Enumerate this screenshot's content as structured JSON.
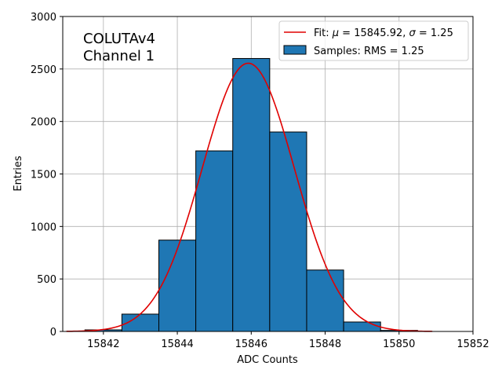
{
  "chart_data": {
    "type": "bar",
    "xlabel": "ADC Counts",
    "ylabel": "Entries",
    "xlim": [
      15840.9,
      15852
    ],
    "ylim": [
      0,
      3000
    ],
    "grid": true,
    "legend_placement": "top-right",
    "annotation": [
      "COLUTAv4",
      "Channel 1"
    ],
    "x_ticks": [
      15842,
      15844,
      15846,
      15848,
      15850,
      15852
    ],
    "y_ticks": [
      0,
      500,
      1000,
      1500,
      2000,
      2500,
      3000
    ],
    "bins": [
      {
        "left": 15841.5,
        "right": 15842.5,
        "value": 15
      },
      {
        "left": 15842.5,
        "right": 15843.5,
        "value": 165
      },
      {
        "left": 15843.5,
        "right": 15844.5,
        "value": 870
      },
      {
        "left": 15844.5,
        "right": 15845.5,
        "value": 1720
      },
      {
        "left": 15845.5,
        "right": 15846.5,
        "value": 2600
      },
      {
        "left": 15846.5,
        "right": 15847.5,
        "value": 1900
      },
      {
        "left": 15847.5,
        "right": 15848.5,
        "value": 585
      },
      {
        "left": 15848.5,
        "right": 15849.5,
        "value": 90
      },
      {
        "left": 15849.5,
        "right": 15850.5,
        "value": 10
      }
    ],
    "fit": {
      "mu": 15845.92,
      "sigma": 1.25,
      "amplitude": 2555,
      "x_range": [
        15841,
        15850.9
      ]
    },
    "legend": {
      "fit_label_prefix": "Fit: ",
      "fit_mu_symbol": "μ",
      "fit_mu_text": " = 15845.92, ",
      "fit_sigma_symbol": "σ",
      "fit_sigma_text": " = 1.25",
      "samples_label": "Samples: RMS = 1.25"
    },
    "colors": {
      "bar_fill": "#1f77b4",
      "bar_edge": "#000000",
      "fit_line": "#e00000",
      "grid": "#b0b0b0"
    }
  }
}
